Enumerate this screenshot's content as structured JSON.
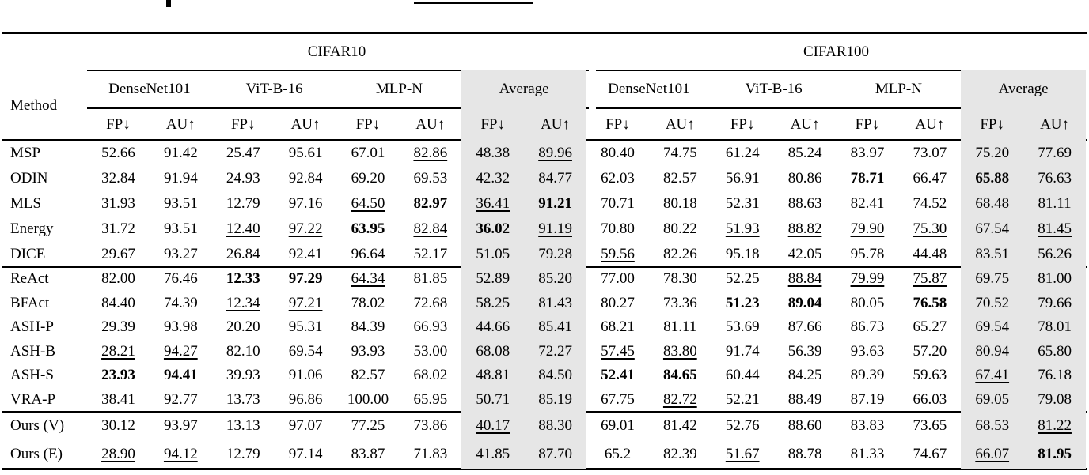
{
  "table": {
    "method_header": "Method",
    "datasets": [
      "CIFAR10",
      "CIFAR100"
    ],
    "architectures": [
      "DenseNet101",
      "ViT-B-16",
      "MLP-N",
      "Average"
    ],
    "metrics": {
      "fp": "FP↓",
      "au": "AU↑"
    },
    "style": {
      "average_column_bg": "#e6e6e6",
      "rule_color": "#000000"
    },
    "groups": [
      {
        "rows": [
          {
            "method": "MSP",
            "values": [
              [
                "52.66",
                ""
              ],
              [
                "91.42",
                ""
              ],
              [
                "25.47",
                ""
              ],
              [
                "95.61",
                ""
              ],
              [
                "67.01",
                ""
              ],
              [
                "82.86",
                "u"
              ],
              [
                "48.38",
                ""
              ],
              [
                "89.96",
                "u"
              ],
              [
                "80.40",
                ""
              ],
              [
                "74.75",
                ""
              ],
              [
                "61.24",
                ""
              ],
              [
                "85.24",
                ""
              ],
              [
                "83.97",
                ""
              ],
              [
                "73.07",
                ""
              ],
              [
                "75.20",
                ""
              ],
              [
                "77.69",
                ""
              ]
            ]
          },
          {
            "method": "ODIN",
            "values": [
              [
                "32.84",
                ""
              ],
              [
                "91.94",
                ""
              ],
              [
                "24.93",
                ""
              ],
              [
                "92.84",
                ""
              ],
              [
                "69.20",
                ""
              ],
              [
                "69.53",
                ""
              ],
              [
                "42.32",
                ""
              ],
              [
                "84.77",
                ""
              ],
              [
                "62.03",
                ""
              ],
              [
                "82.57",
                ""
              ],
              [
                "56.91",
                ""
              ],
              [
                "80.86",
                ""
              ],
              [
                "78.71",
                "b"
              ],
              [
                "66.47",
                ""
              ],
              [
                "65.88",
                "b"
              ],
              [
                "76.63",
                ""
              ]
            ]
          },
          {
            "method": "MLS",
            "values": [
              [
                "31.93",
                ""
              ],
              [
                "93.51",
                ""
              ],
              [
                "12.79",
                ""
              ],
              [
                "97.16",
                ""
              ],
              [
                "64.50",
                "u"
              ],
              [
                "82.97",
                "b"
              ],
              [
                "36.41",
                "u"
              ],
              [
                "91.21",
                "b"
              ],
              [
                "70.71",
                ""
              ],
              [
                "80.18",
                ""
              ],
              [
                "52.31",
                ""
              ],
              [
                "88.63",
                ""
              ],
              [
                "82.41",
                ""
              ],
              [
                "74.52",
                ""
              ],
              [
                "68.48",
                ""
              ],
              [
                "81.11",
                ""
              ]
            ]
          },
          {
            "method": "Energy",
            "values": [
              [
                "31.72",
                ""
              ],
              [
                "93.51",
                ""
              ],
              [
                "12.40",
                "u"
              ],
              [
                "97.22",
                "u"
              ],
              [
                "63.95",
                "b"
              ],
              [
                "82.84",
                "u"
              ],
              [
                "36.02",
                "b"
              ],
              [
                "91.19",
                "u"
              ],
              [
                "70.80",
                ""
              ],
              [
                "80.22",
                ""
              ],
              [
                "51.93",
                "u"
              ],
              [
                "88.82",
                "u"
              ],
              [
                "79.90",
                "u"
              ],
              [
                "75.30",
                "u"
              ],
              [
                "67.54",
                ""
              ],
              [
                "81.45",
                "u"
              ]
            ]
          },
          {
            "method": "DICE",
            "values": [
              [
                "29.67",
                ""
              ],
              [
                "93.27",
                ""
              ],
              [
                "26.84",
                ""
              ],
              [
                "92.41",
                ""
              ],
              [
                "96.64",
                ""
              ],
              [
                "52.17",
                ""
              ],
              [
                "51.05",
                ""
              ],
              [
                "79.28",
                ""
              ],
              [
                "59.56",
                "u"
              ],
              [
                "82.26",
                ""
              ],
              [
                "95.18",
                ""
              ],
              [
                "42.05",
                ""
              ],
              [
                "95.78",
                ""
              ],
              [
                "44.48",
                ""
              ],
              [
                "83.51",
                ""
              ],
              [
                "56.26",
                ""
              ]
            ]
          }
        ]
      },
      {
        "rows": [
          {
            "method": "ReAct",
            "values": [
              [
                "82.00",
                ""
              ],
              [
                "76.46",
                ""
              ],
              [
                "12.33",
                "b"
              ],
              [
                "97.29",
                "b"
              ],
              [
                "64.34",
                "u"
              ],
              [
                "81.85",
                ""
              ],
              [
                "52.89",
                ""
              ],
              [
                "85.20",
                ""
              ],
              [
                "77.00",
                ""
              ],
              [
                "78.30",
                ""
              ],
              [
                "52.25",
                ""
              ],
              [
                "88.84",
                "u"
              ],
              [
                "79.99",
                "u"
              ],
              [
                "75.87",
                "u"
              ],
              [
                "69.75",
                ""
              ],
              [
                "81.00",
                ""
              ]
            ]
          },
          {
            "method": "BFAct",
            "values": [
              [
                "84.40",
                ""
              ],
              [
                "74.39",
                ""
              ],
              [
                "12.34",
                "u"
              ],
              [
                "97.21",
                "u"
              ],
              [
                "78.02",
                ""
              ],
              [
                "72.68",
                ""
              ],
              [
                "58.25",
                ""
              ],
              [
                "81.43",
                ""
              ],
              [
                "80.27",
                ""
              ],
              [
                "73.36",
                ""
              ],
              [
                "51.23",
                "b"
              ],
              [
                "89.04",
                "b"
              ],
              [
                "80.05",
                ""
              ],
              [
                "76.58",
                "b"
              ],
              [
                "70.52",
                ""
              ],
              [
                "79.66",
                ""
              ]
            ]
          },
          {
            "method": "ASH-P",
            "values": [
              [
                "29.39",
                ""
              ],
              [
                "93.98",
                ""
              ],
              [
                "20.20",
                ""
              ],
              [
                "95.31",
                ""
              ],
              [
                "84.39",
                ""
              ],
              [
                "66.93",
                ""
              ],
              [
                "44.66",
                ""
              ],
              [
                "85.41",
                ""
              ],
              [
                "68.21",
                ""
              ],
              [
                "81.11",
                ""
              ],
              [
                "53.69",
                ""
              ],
              [
                "87.66",
                ""
              ],
              [
                "86.73",
                ""
              ],
              [
                "65.27",
                ""
              ],
              [
                "69.54",
                ""
              ],
              [
                "78.01",
                ""
              ]
            ]
          },
          {
            "method": "ASH-B",
            "values": [
              [
                "28.21",
                "u"
              ],
              [
                "94.27",
                "u"
              ],
              [
                "82.10",
                ""
              ],
              [
                "69.54",
                ""
              ],
              [
                "93.93",
                ""
              ],
              [
                "53.00",
                ""
              ],
              [
                "68.08",
                ""
              ],
              [
                "72.27",
                ""
              ],
              [
                "57.45",
                "u"
              ],
              [
                "83.80",
                "u"
              ],
              [
                "91.74",
                ""
              ],
              [
                "56.39",
                ""
              ],
              [
                "93.63",
                ""
              ],
              [
                "57.20",
                ""
              ],
              [
                "80.94",
                ""
              ],
              [
                "65.80",
                ""
              ]
            ]
          },
          {
            "method": "ASH-S",
            "values": [
              [
                "23.93",
                "b"
              ],
              [
                "94.41",
                "b"
              ],
              [
                "39.93",
                ""
              ],
              [
                "91.06",
                ""
              ],
              [
                "82.57",
                ""
              ],
              [
                "68.02",
                ""
              ],
              [
                "48.81",
                ""
              ],
              [
                "84.50",
                ""
              ],
              [
                "52.41",
                "b"
              ],
              [
                "84.65",
                "b"
              ],
              [
                "60.44",
                ""
              ],
              [
                "84.25",
                ""
              ],
              [
                "89.39",
                ""
              ],
              [
                "59.63",
                ""
              ],
              [
                "67.41",
                "u"
              ],
              [
                "76.18",
                ""
              ]
            ]
          },
          {
            "method": "VRA-P",
            "values": [
              [
                "38.41",
                ""
              ],
              [
                "92.77",
                ""
              ],
              [
                "13.73",
                ""
              ],
              [
                "96.86",
                ""
              ],
              [
                "100.00",
                ""
              ],
              [
                "65.95",
                ""
              ],
              [
                "50.71",
                ""
              ],
              [
                "85.19",
                ""
              ],
              [
                "67.75",
                ""
              ],
              [
                "82.72",
                "u"
              ],
              [
                "52.21",
                ""
              ],
              [
                "88.49",
                ""
              ],
              [
                "87.19",
                ""
              ],
              [
                "66.03",
                ""
              ],
              [
                "69.05",
                ""
              ],
              [
                "79.08",
                ""
              ]
            ]
          }
        ]
      },
      {
        "rows": [
          {
            "method": "Ours (V)",
            "values": [
              [
                "30.12",
                ""
              ],
              [
                "93.97",
                ""
              ],
              [
                "13.13",
                ""
              ],
              [
                "97.07",
                ""
              ],
              [
                "77.25",
                ""
              ],
              [
                "73.86",
                ""
              ],
              [
                "40.17",
                "u"
              ],
              [
                "88.30",
                ""
              ],
              [
                "69.01",
                ""
              ],
              [
                "81.42",
                ""
              ],
              [
                "52.76",
                ""
              ],
              [
                "88.60",
                ""
              ],
              [
                "83.83",
                ""
              ],
              [
                "73.65",
                ""
              ],
              [
                "68.53",
                ""
              ],
              [
                "81.22",
                "u"
              ]
            ]
          },
          {
            "method": "Ours (E)",
            "values": [
              [
                "28.90",
                "u"
              ],
              [
                "94.12",
                "u"
              ],
              [
                "12.79",
                ""
              ],
              [
                "97.14",
                ""
              ],
              [
                "83.87",
                ""
              ],
              [
                "71.83",
                ""
              ],
              [
                "41.85",
                ""
              ],
              [
                "87.70",
                ""
              ],
              [
                "65.2",
                ""
              ],
              [
                "82.39",
                ""
              ],
              [
                "51.67",
                "u"
              ],
              [
                "88.78",
                ""
              ],
              [
                "81.33",
                ""
              ],
              [
                "74.67",
                ""
              ],
              [
                "66.07",
                "u"
              ],
              [
                "81.95",
                "b"
              ]
            ]
          }
        ]
      }
    ]
  }
}
